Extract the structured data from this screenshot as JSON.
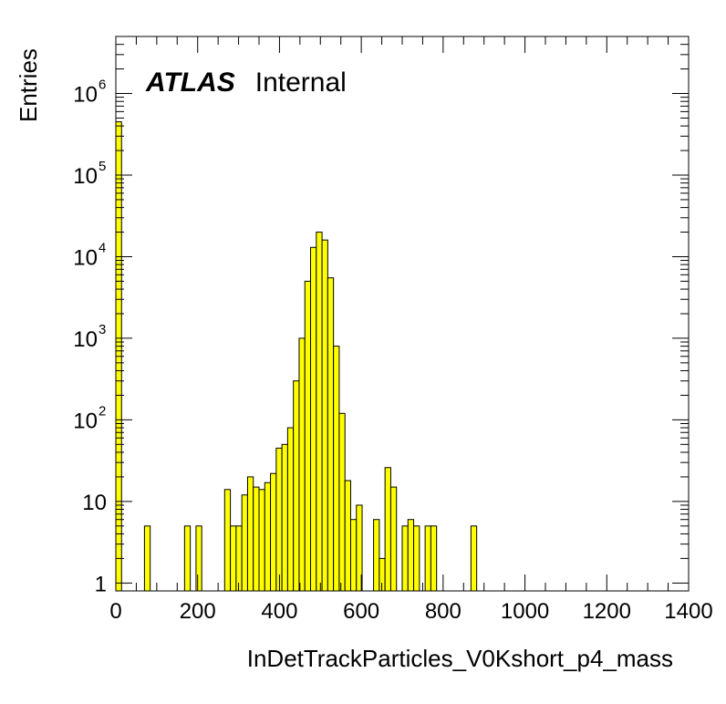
{
  "chart_data": {
    "type": "bar",
    "xlabel": "InDetTrackParticles_V0Kshort_p4_mass",
    "ylabel": "Entries",
    "label_bold": "ATLAS",
    "label_text": "Internal",
    "xlim": [
      0,
      1400
    ],
    "ylim": [
      0.8,
      5000000
    ],
    "yscale": "log",
    "bin_width": 14,
    "x_ticks": [
      "0",
      "200",
      "400",
      "600",
      "800",
      "1000",
      "1200",
      "1400"
    ],
    "y_ticks": [
      {
        "value": 1,
        "base": "1",
        "exp": ""
      },
      {
        "value": 10,
        "base": "10",
        "exp": ""
      },
      {
        "value": 100,
        "base": "10",
        "exp": "2"
      },
      {
        "value": 1000,
        "base": "10",
        "exp": "3"
      },
      {
        "value": 10000,
        "base": "10",
        "exp": "4"
      },
      {
        "value": 100000,
        "base": "10",
        "exp": "5"
      },
      {
        "value": 1000000,
        "base": "10",
        "exp": "6"
      }
    ],
    "fill_color": "#ffff00",
    "line_color": "#000000",
    "bins": [
      {
        "x": 0,
        "y": 450000
      },
      {
        "x": 70,
        "y": 5
      },
      {
        "x": 168,
        "y": 5
      },
      {
        "x": 196,
        "y": 5
      },
      {
        "x": 266,
        "y": 14
      },
      {
        "x": 280,
        "y": 5
      },
      {
        "x": 294,
        "y": 5
      },
      {
        "x": 308,
        "y": 12
      },
      {
        "x": 322,
        "y": 20
      },
      {
        "x": 336,
        "y": 15
      },
      {
        "x": 350,
        "y": 14
      },
      {
        "x": 364,
        "y": 17
      },
      {
        "x": 378,
        "y": 22
      },
      {
        "x": 392,
        "y": 45
      },
      {
        "x": 406,
        "y": 50
      },
      {
        "x": 420,
        "y": 80
      },
      {
        "x": 434,
        "y": 300
      },
      {
        "x": 448,
        "y": 1000
      },
      {
        "x": 462,
        "y": 5000
      },
      {
        "x": 476,
        "y": 13000
      },
      {
        "x": 490,
        "y": 20000
      },
      {
        "x": 504,
        "y": 16000
      },
      {
        "x": 518,
        "y": 5500
      },
      {
        "x": 532,
        "y": 800
      },
      {
        "x": 546,
        "y": 120
      },
      {
        "x": 560,
        "y": 18
      },
      {
        "x": 574,
        "y": 6
      },
      {
        "x": 588,
        "y": 9
      },
      {
        "x": 630,
        "y": 6
      },
      {
        "x": 644,
        "y": 2
      },
      {
        "x": 658,
        "y": 26
      },
      {
        "x": 672,
        "y": 15
      },
      {
        "x": 700,
        "y": 5
      },
      {
        "x": 714,
        "y": 6
      },
      {
        "x": 728,
        "y": 5
      },
      {
        "x": 756,
        "y": 5
      },
      {
        "x": 770,
        "y": 5
      },
      {
        "x": 868,
        "y": 5
      }
    ]
  }
}
